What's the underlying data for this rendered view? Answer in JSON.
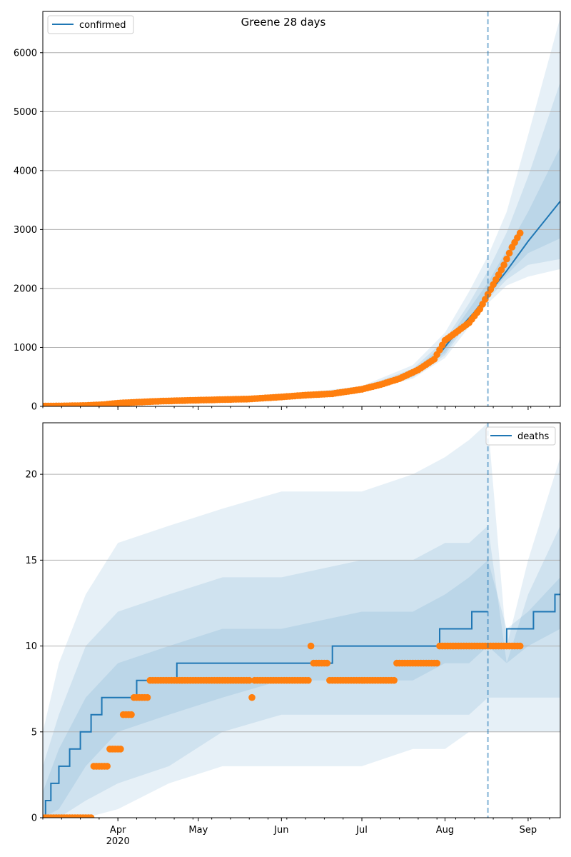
{
  "figure": {
    "title": "Greene 28 days"
  },
  "colors": {
    "model_line": "#1f77b4",
    "observed": "#ff7f0e",
    "band": "#1f77b4",
    "grid": "#b0b0b0",
    "vline": "#1f77b4"
  },
  "x_axis": {
    "month_ticks": [
      {
        "date": "2020-04-01",
        "label": "Apr",
        "sublabel": "2020"
      },
      {
        "date": "2020-05-01",
        "label": "May",
        "sublabel": ""
      },
      {
        "date": "2020-06-01",
        "label": "Jun",
        "sublabel": ""
      },
      {
        "date": "2020-07-01",
        "label": "Jul",
        "sublabel": ""
      },
      {
        "date": "2020-08-01",
        "label": "Aug",
        "sublabel": ""
      },
      {
        "date": "2020-09-01",
        "label": "Sep",
        "sublabel": ""
      }
    ]
  },
  "chart_data": [
    {
      "type": "line",
      "panel": "top",
      "legend": {
        "label": "confirmed",
        "placement": "upper-left"
      },
      "xlim": [
        "2020-03-04",
        "2020-09-13"
      ],
      "ylim": [
        0,
        6700
      ],
      "yticks": [
        0,
        1000,
        2000,
        3000,
        4000,
        5000,
        6000
      ],
      "grid": "horizontal",
      "vline_date": "2020-08-17",
      "series": [
        {
          "name": "confirmed",
          "x": [
            "2020-03-04",
            "2020-03-20",
            "2020-04-01",
            "2020-04-15",
            "2020-05-01",
            "2020-05-15",
            "2020-06-01",
            "2020-06-15",
            "2020-07-01",
            "2020-07-10",
            "2020-07-20",
            "2020-07-31",
            "2020-08-06",
            "2020-08-12",
            "2020-08-17",
            "2020-08-24",
            "2020-09-01",
            "2020-09-13"
          ],
          "values": [
            5,
            15,
            50,
            80,
            110,
            120,
            160,
            200,
            290,
            380,
            560,
            950,
            1300,
            1600,
            1900,
            2300,
            2800,
            3480
          ]
        }
      ],
      "bands": [
        {
          "x": [
            "2020-03-04",
            "2020-04-01",
            "2020-05-01",
            "2020-06-01",
            "2020-07-01",
            "2020-07-20",
            "2020-08-01",
            "2020-08-10",
            "2020-08-17",
            "2020-08-24",
            "2020-09-01",
            "2020-09-13"
          ],
          "lower": [
            0,
            40,
            95,
            145,
            255,
            470,
            820,
            1350,
            1750,
            2050,
            2200,
            2330
          ],
          "upper": [
            12,
            60,
            130,
            185,
            345,
            700,
            1250,
            1950,
            2550,
            3300,
            4600,
            6600
          ]
        },
        {
          "x": [
            "2020-03-04",
            "2020-04-01",
            "2020-05-01",
            "2020-06-01",
            "2020-07-01",
            "2020-07-20",
            "2020-08-01",
            "2020-08-10",
            "2020-08-17",
            "2020-08-24",
            "2020-09-01",
            "2020-09-13"
          ],
          "lower": [
            1,
            44,
            100,
            150,
            265,
            495,
            870,
            1450,
            1820,
            2150,
            2400,
            2500
          ],
          "upper": [
            10,
            56,
            122,
            175,
            325,
            640,
            1130,
            1750,
            2300,
            2950,
            3900,
            5500
          ]
        },
        {
          "x": [
            "2020-03-04",
            "2020-04-01",
            "2020-05-01",
            "2020-06-01",
            "2020-07-01",
            "2020-07-20",
            "2020-08-01",
            "2020-08-10",
            "2020-08-17",
            "2020-08-24",
            "2020-09-01",
            "2020-09-13"
          ],
          "lower": [
            2,
            47,
            104,
            154,
            275,
            520,
            910,
            1520,
            1870,
            2230,
            2600,
            2850
          ],
          "upper": [
            8,
            53,
            116,
            168,
            310,
            605,
            1060,
            1650,
            2100,
            2650,
            3300,
            4400
          ]
        }
      ],
      "observed": {
        "x": [
          "2020-03-04",
          "2020-03-12",
          "2020-03-20",
          "2020-03-27",
          "2020-04-01",
          "2020-04-08",
          "2020-04-15",
          "2020-04-22",
          "2020-05-01",
          "2020-05-10",
          "2020-05-20",
          "2020-06-01",
          "2020-06-10",
          "2020-06-20",
          "2020-07-01",
          "2020-07-08",
          "2020-07-15",
          "2020-07-22",
          "2020-07-28",
          "2020-08-01",
          "2020-08-05",
          "2020-08-10",
          "2020-08-14",
          "2020-08-17",
          "2020-08-20",
          "2020-08-23",
          "2020-08-26",
          "2020-08-29"
        ],
        "values": [
          5,
          8,
          15,
          30,
          55,
          70,
          85,
          95,
          105,
          115,
          125,
          160,
          190,
          215,
          290,
          370,
          470,
          620,
          800,
          1120,
          1250,
          1420,
          1650,
          1900,
          2150,
          2400,
          2700,
          2940
        ]
      }
    },
    {
      "type": "line",
      "panel": "bottom",
      "legend": {
        "label": "deaths",
        "placement": "upper-right"
      },
      "xlim": [
        "2020-03-04",
        "2020-09-13"
      ],
      "ylim": [
        0,
        23
      ],
      "yticks": [
        0,
        5,
        10,
        15,
        20
      ],
      "grid": "horizontal",
      "vline_date": "2020-08-17",
      "series": [
        {
          "name": "deaths",
          "step_x": [
            "2020-03-04",
            "2020-03-05",
            "2020-03-07",
            "2020-03-10",
            "2020-03-14",
            "2020-03-18",
            "2020-03-22",
            "2020-03-26",
            "2020-04-01",
            "2020-04-08",
            "2020-04-23",
            "2020-06-20",
            "2020-07-30",
            "2020-08-11",
            "2020-08-17",
            "2020-08-24",
            "2020-09-03",
            "2020-09-11",
            "2020-09-13"
          ],
          "step_y": [
            0,
            1,
            2,
            3,
            4,
            5,
            6,
            7,
            7,
            8,
            9,
            10,
            11,
            12,
            10,
            11,
            12,
            13,
            13
          ]
        }
      ],
      "bands": [
        {
          "x": [
            "2020-03-04",
            "2020-03-10",
            "2020-03-20",
            "2020-04-01",
            "2020-04-20",
            "2020-05-10",
            "2020-06-01",
            "2020-07-01",
            "2020-07-20",
            "2020-08-01",
            "2020-08-10",
            "2020-08-17",
            "2020-08-24",
            "2020-09-01",
            "2020-09-13"
          ],
          "lower": [
            0,
            0,
            0,
            0.5,
            2,
            3,
            3,
            3,
            4,
            4,
            5,
            5,
            5,
            5,
            5
          ],
          "upper": [
            5,
            9,
            13,
            16,
            17,
            18,
            19,
            19,
            20,
            21,
            22,
            23,
            10,
            15,
            21
          ]
        },
        {
          "x": [
            "2020-03-04",
            "2020-03-10",
            "2020-03-20",
            "2020-04-01",
            "2020-04-20",
            "2020-05-10",
            "2020-06-01",
            "2020-07-01",
            "2020-07-20",
            "2020-08-01",
            "2020-08-10",
            "2020-08-17",
            "2020-08-24",
            "2020-09-01",
            "2020-09-13"
          ],
          "lower": [
            0,
            0,
            1,
            2,
            3,
            5,
            6,
            6,
            6,
            6,
            6,
            7,
            7,
            7,
            7
          ],
          "upper": [
            3,
            6,
            10,
            12,
            13,
            14,
            14,
            15,
            15,
            16,
            16,
            17,
            9,
            13,
            17
          ]
        },
        {
          "x": [
            "2020-03-04",
            "2020-03-10",
            "2020-03-20",
            "2020-04-01",
            "2020-04-20",
            "2020-05-10",
            "2020-06-01",
            "2020-07-01",
            "2020-07-20",
            "2020-08-01",
            "2020-08-10",
            "2020-08-17",
            "2020-08-24",
            "2020-09-01",
            "2020-09-13"
          ],
          "lower": [
            0,
            0.5,
            3,
            5,
            6,
            7,
            8,
            8,
            8,
            9,
            9,
            10,
            9,
            10,
            11
          ],
          "upper": [
            1.5,
            4,
            7,
            9,
            10,
            11,
            11,
            12,
            12,
            13,
            14,
            15,
            11,
            12,
            14
          ]
        }
      ],
      "observed": {
        "segments": [
          {
            "from": "2020-03-04",
            "to": "2020-03-22",
            "value": 0
          },
          {
            "from": "2020-03-23",
            "to": "2020-03-28",
            "value": 3
          },
          {
            "from": "2020-03-29",
            "to": "2020-04-02",
            "value": 4
          },
          {
            "from": "2020-04-03",
            "to": "2020-04-06",
            "value": 6
          },
          {
            "from": "2020-04-07",
            "to": "2020-04-12",
            "value": 7
          },
          {
            "from": "2020-04-13",
            "to": "2020-05-20",
            "value": 8
          },
          {
            "from": "2020-05-21",
            "to": "2020-05-21",
            "value": 7
          },
          {
            "from": "2020-05-22",
            "to": "2020-06-11",
            "value": 8
          },
          {
            "from": "2020-06-12",
            "to": "2020-06-12",
            "value": 10
          },
          {
            "from": "2020-06-13",
            "to": "2020-06-18",
            "value": 9
          },
          {
            "from": "2020-06-19",
            "to": "2020-07-13",
            "value": 8
          },
          {
            "from": "2020-07-14",
            "to": "2020-07-29",
            "value": 9
          },
          {
            "from": "2020-07-30",
            "to": "2020-08-29",
            "value": 10
          }
        ]
      }
    }
  ]
}
